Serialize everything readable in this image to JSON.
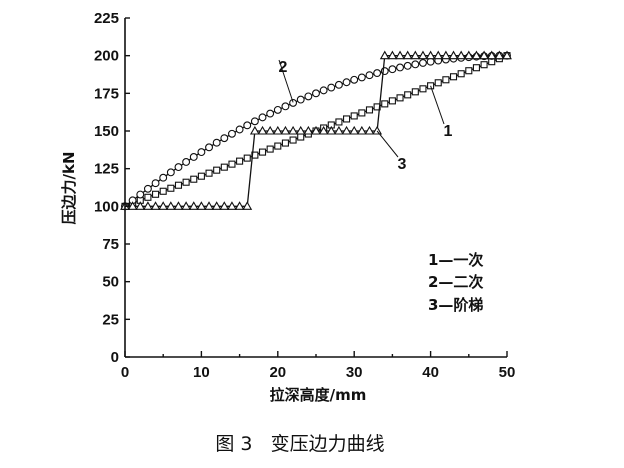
{
  "caption": "图 3   变压边力曲线",
  "chart_data": {
    "type": "line",
    "title": "",
    "xlabel": "拉深高度/mm",
    "ylabel": "压边力/kN",
    "xlim": [
      0,
      50
    ],
    "ylim": [
      0,
      225
    ],
    "xticks": [
      0,
      10,
      20,
      30,
      40,
      50
    ],
    "yticks": [
      0,
      25,
      50,
      75,
      100,
      125,
      150,
      175,
      200,
      225
    ],
    "grid": false,
    "legend_position": "lower-right",
    "legend": [
      "1—一次",
      "2—二次",
      "3—阶梯"
    ],
    "series": [
      {
        "id": "1",
        "marker": "square",
        "x": [
          0,
          1,
          2,
          3,
          4,
          5,
          6,
          7,
          8,
          9,
          10,
          11,
          12,
          13,
          14,
          15,
          16,
          17,
          18,
          19,
          20,
          21,
          22,
          23,
          24,
          25,
          26,
          27,
          28,
          29,
          30,
          31,
          32,
          33,
          34,
          35,
          36,
          37,
          38,
          39,
          40,
          41,
          42,
          43,
          44,
          45,
          46,
          47,
          48,
          49,
          50
        ],
        "y": [
          100,
          102,
          104,
          106,
          108,
          110,
          112,
          114,
          116,
          118,
          120,
          122,
          124,
          126,
          128,
          130,
          132,
          134,
          136,
          138,
          140,
          142,
          144,
          146,
          148,
          150,
          152,
          154,
          156,
          158,
          160,
          162,
          164,
          166,
          168,
          170,
          172,
          174,
          176,
          178,
          180,
          182,
          184,
          186,
          188,
          190,
          192,
          194,
          196,
          198,
          200
        ]
      },
      {
        "id": "2",
        "marker": "circle",
        "x": [
          0,
          1,
          2,
          3,
          4,
          5,
          6,
          7,
          8,
          9,
          10,
          11,
          12,
          13,
          14,
          15,
          16,
          17,
          18,
          19,
          20,
          21,
          22,
          23,
          24,
          25,
          26,
          27,
          28,
          29,
          30,
          31,
          32,
          33,
          34,
          35,
          36,
          37,
          38,
          39,
          40,
          41,
          42,
          43,
          44,
          45,
          46,
          47,
          48,
          49,
          50
        ],
        "y": [
          100,
          103.96,
          107.84,
          111.64,
          115.36,
          119,
          122.56,
          126.04,
          129.44,
          132.76,
          136,
          139.16,
          142.24,
          145.24,
          148.16,
          151,
          153.76,
          156.44,
          159.04,
          161.56,
          164,
          166.36,
          168.64,
          170.84,
          172.96,
          175,
          176.96,
          178.84,
          180.64,
          182.36,
          184,
          185.56,
          187.04,
          188.44,
          189.76,
          191,
          192.16,
          193.24,
          194.24,
          195.16,
          196,
          196.76,
          197.44,
          198.04,
          198.56,
          199,
          199.36,
          199.64,
          199.84,
          199.96,
          200
        ]
      },
      {
        "id": "3",
        "marker": "triangle",
        "x": [
          0,
          1,
          2,
          3,
          4,
          5,
          6,
          7,
          8,
          9,
          10,
          11,
          12,
          13,
          14,
          15,
          16,
          17,
          18,
          19,
          20,
          21,
          22,
          23,
          24,
          25,
          26,
          27,
          28,
          29,
          30,
          31,
          32,
          33,
          34,
          35,
          36,
          37,
          38,
          39,
          40,
          41,
          42,
          43,
          44,
          45,
          46,
          47,
          48,
          49,
          50
        ],
        "y": [
          100,
          100,
          100,
          100,
          100,
          100,
          100,
          100,
          100,
          100,
          100,
          100,
          100,
          100,
          100,
          100,
          100,
          150,
          150,
          150,
          150,
          150,
          150,
          150,
          150,
          150,
          150,
          150,
          150,
          150,
          150,
          150,
          150,
          150,
          200,
          200,
          200,
          200,
          200,
          200,
          200,
          200,
          200,
          200,
          200,
          200,
          200,
          200,
          200,
          200,
          200
        ]
      }
    ],
    "annotations": [
      {
        "text": "1",
        "series": "1",
        "x": 40,
        "y": 180
      },
      {
        "text": "2",
        "series": "2",
        "x": 22,
        "y": 169
      },
      {
        "text": "3",
        "series": "3",
        "x": 33,
        "y": 150
      }
    ]
  }
}
